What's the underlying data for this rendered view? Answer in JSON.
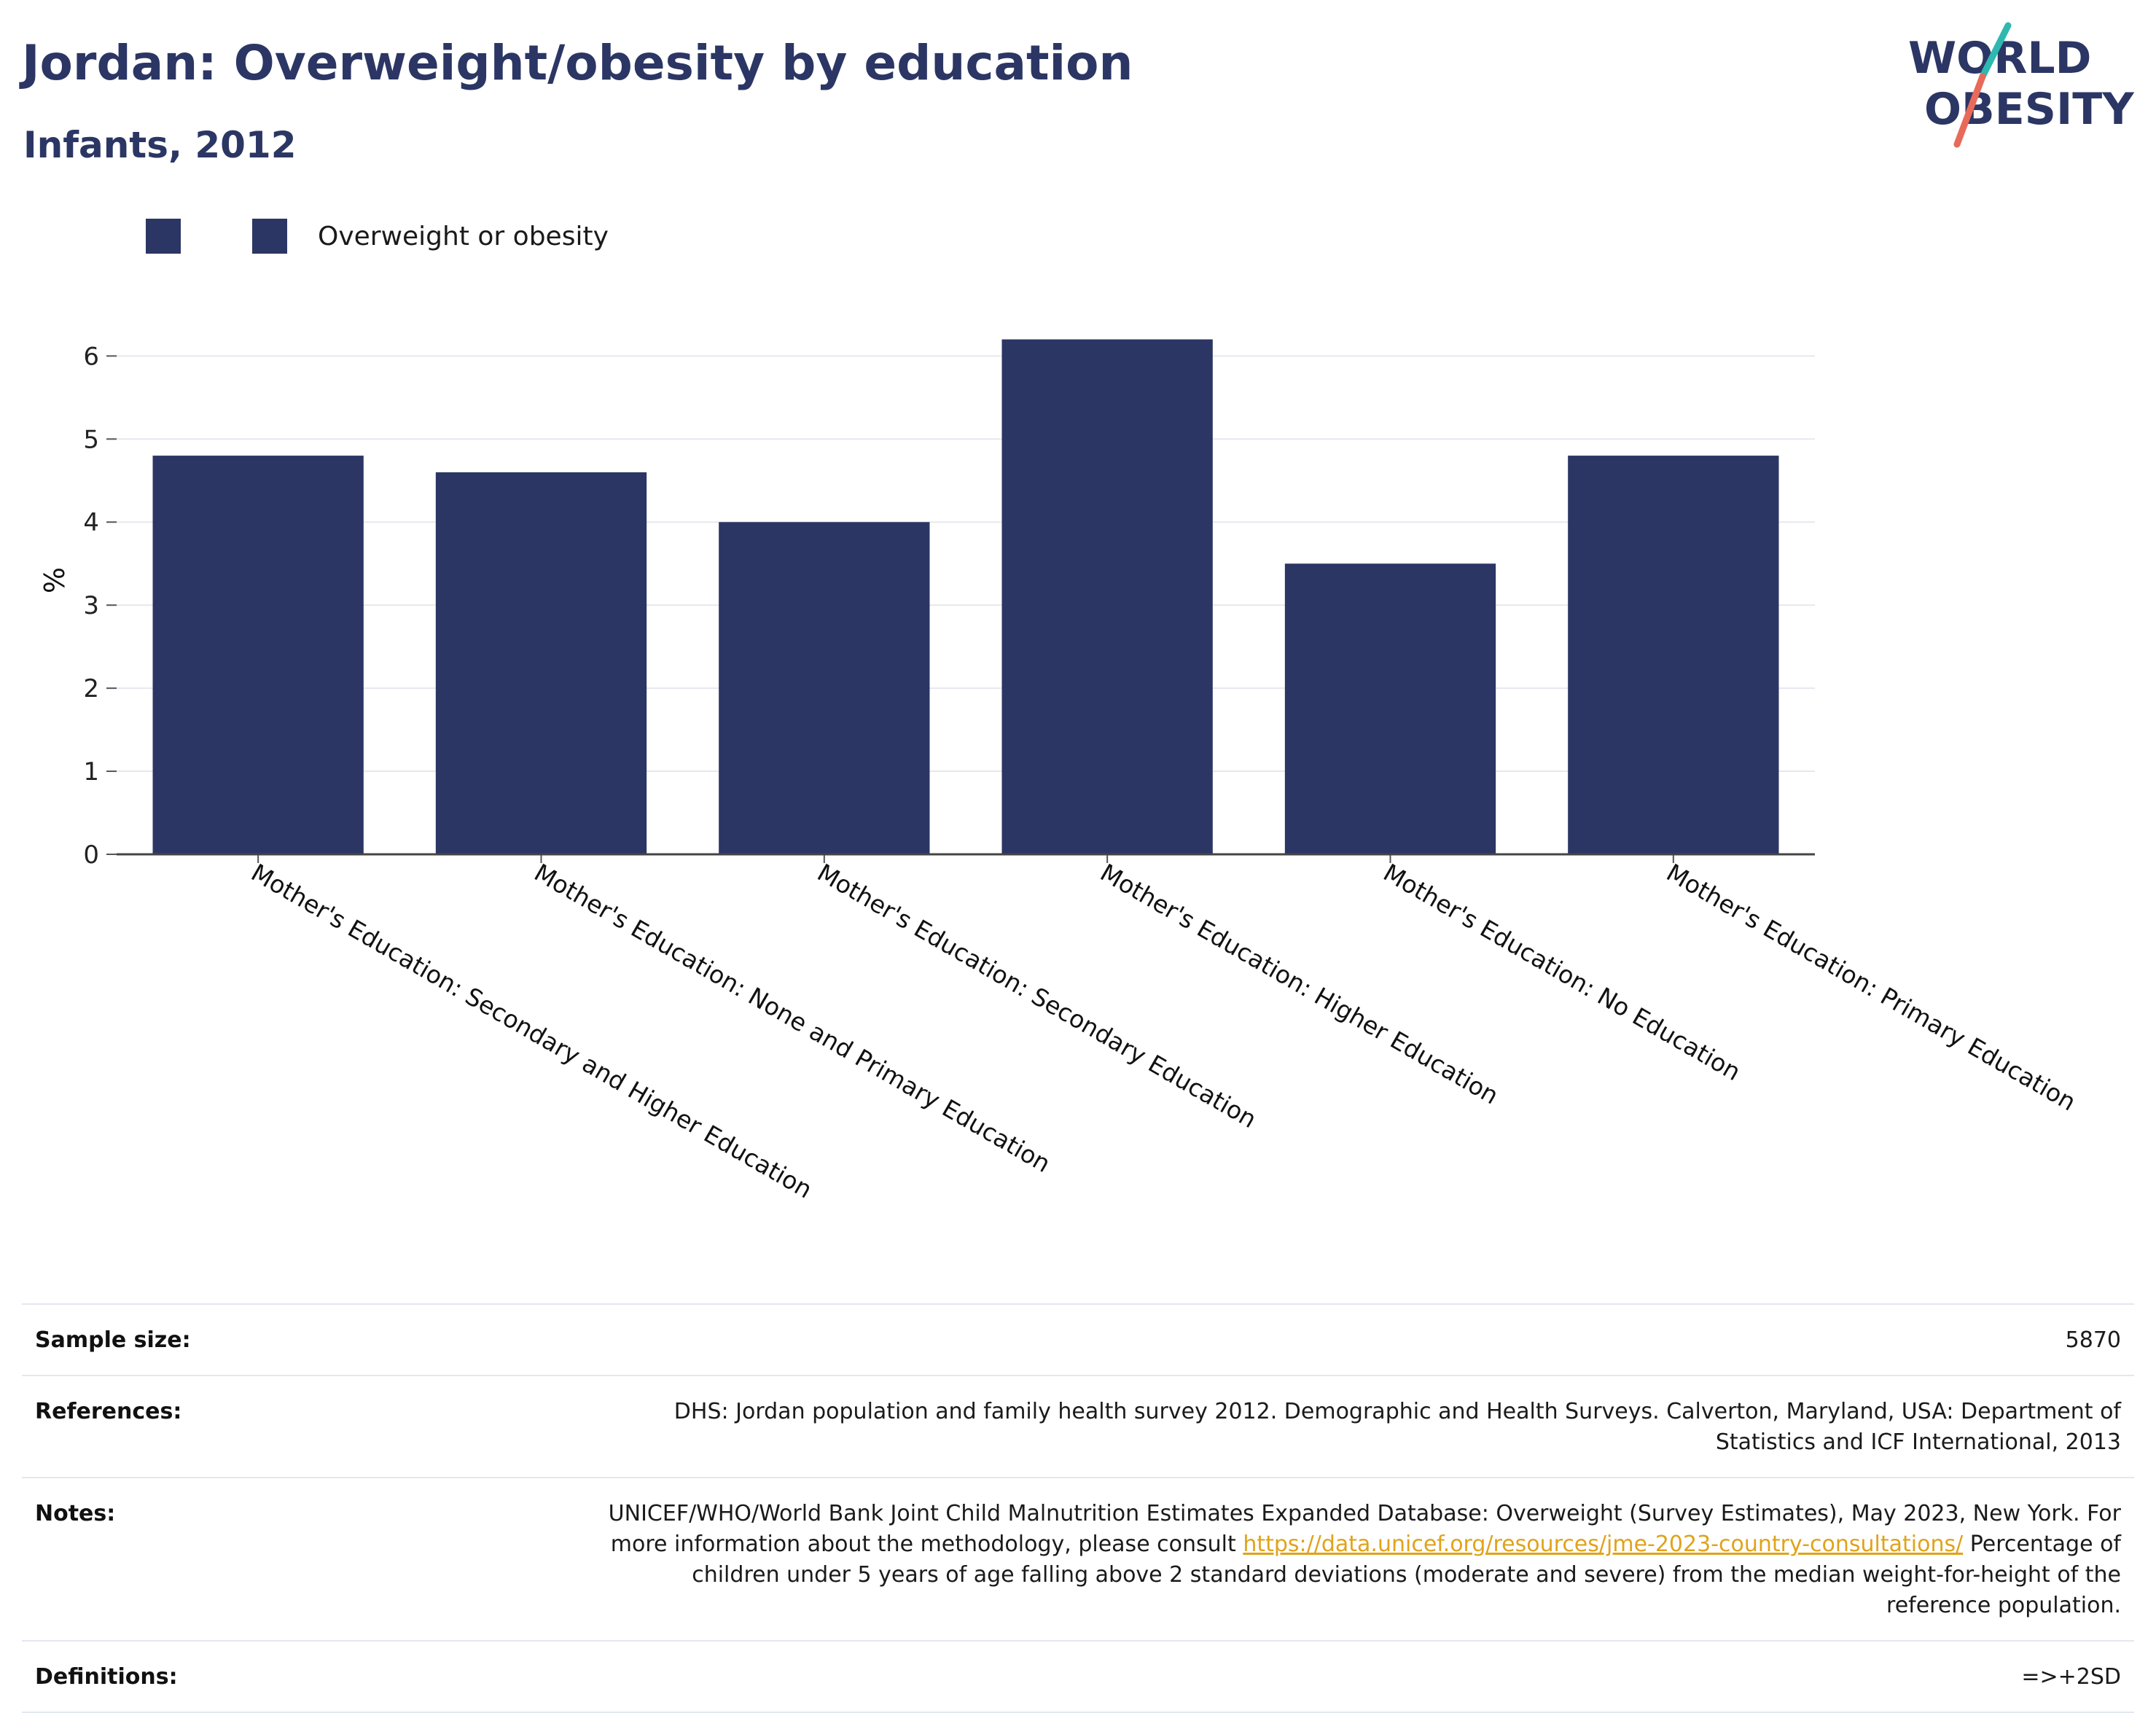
{
  "header": {
    "title": "Jordan: Overweight/obesity by education",
    "subtitle": "Infants, 2012"
  },
  "logo": {
    "line1": "WORLD",
    "line2": "OBESITY"
  },
  "legend": {
    "series_label": "Overweight or obesity"
  },
  "colors": {
    "bar": "#2b3664",
    "title": "#2b3664",
    "link": "#e0a31a",
    "logo_teal": "#2fb8b0",
    "logo_coral": "#e86a5a"
  },
  "chart_data": {
    "type": "bar",
    "title": "Jordan: Overweight/obesity by education",
    "subtitle": "Infants, 2012",
    "xlabel": "",
    "ylabel": "%",
    "ylim": [
      0,
      6.6
    ],
    "yticks": [
      0,
      1,
      2,
      3,
      4,
      5,
      6
    ],
    "grid": true,
    "legend_position": "top-left",
    "categories": [
      "Mother's Education: Secondary and Higher Education",
      "Mother's Education: None and Primary Education",
      "Mother's Education: Secondary Education",
      "Mother's Education: Higher Education",
      "Mother's Education: No Education",
      "Mother's Education: Primary Education"
    ],
    "series": [
      {
        "name": "Overweight or obesity",
        "values": [
          4.8,
          4.6,
          4.0,
          6.2,
          3.5,
          4.8
        ]
      }
    ]
  },
  "info": {
    "sample_size_label": "Sample size:",
    "sample_size_value": "5870",
    "references_label": "References:",
    "references_value": "DHS: Jordan population and family health survey 2012. Demographic and Health Surveys. Calverton, Maryland, USA: Department of Statistics and ICF International, 2013",
    "notes_label": "Notes:",
    "notes_text_1": "UNICEF/WHO/World Bank Joint Child Malnutrition Estimates Expanded Database: Overweight (Survey Estimates), May 2023, New York. For more information about the methodology, please consult ",
    "notes_link": "https://data.unicef.org/resources/jme-2023-country-consultations/",
    "notes_text_2": " Percentage of children under 5 years of age falling above 2 standard deviations (moderate and severe) from the median weight-for-height of the reference population.",
    "definitions_label": "Definitions:",
    "definitions_value": "=>+2SD"
  }
}
